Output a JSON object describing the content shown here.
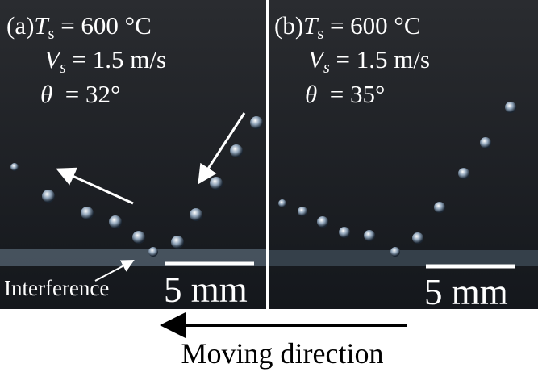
{
  "panels": [
    {
      "label": "(a)",
      "lines": [
        {
          "symbol": "T",
          "sub": "s",
          "rest": " = 600 °C"
        },
        {
          "symbol": "V",
          "sub": "s",
          "rest": " = 1.5 m/s"
        },
        {
          "symbol": "θ",
          "rest": "  = 32°"
        }
      ],
      "annotation": "Interference",
      "scale_bar": "5 mm"
    },
    {
      "label": "(b)",
      "lines": [
        {
          "symbol": "T",
          "sub": "s",
          "rest": " = 600 °C"
        },
        {
          "symbol": "V",
          "sub": "s",
          "rest": " = 1.5 m/s"
        },
        {
          "symbol": "θ",
          "rest": "  = 35°"
        }
      ],
      "scale_bar": "5 mm"
    }
  ],
  "caption": "Moving direction"
}
